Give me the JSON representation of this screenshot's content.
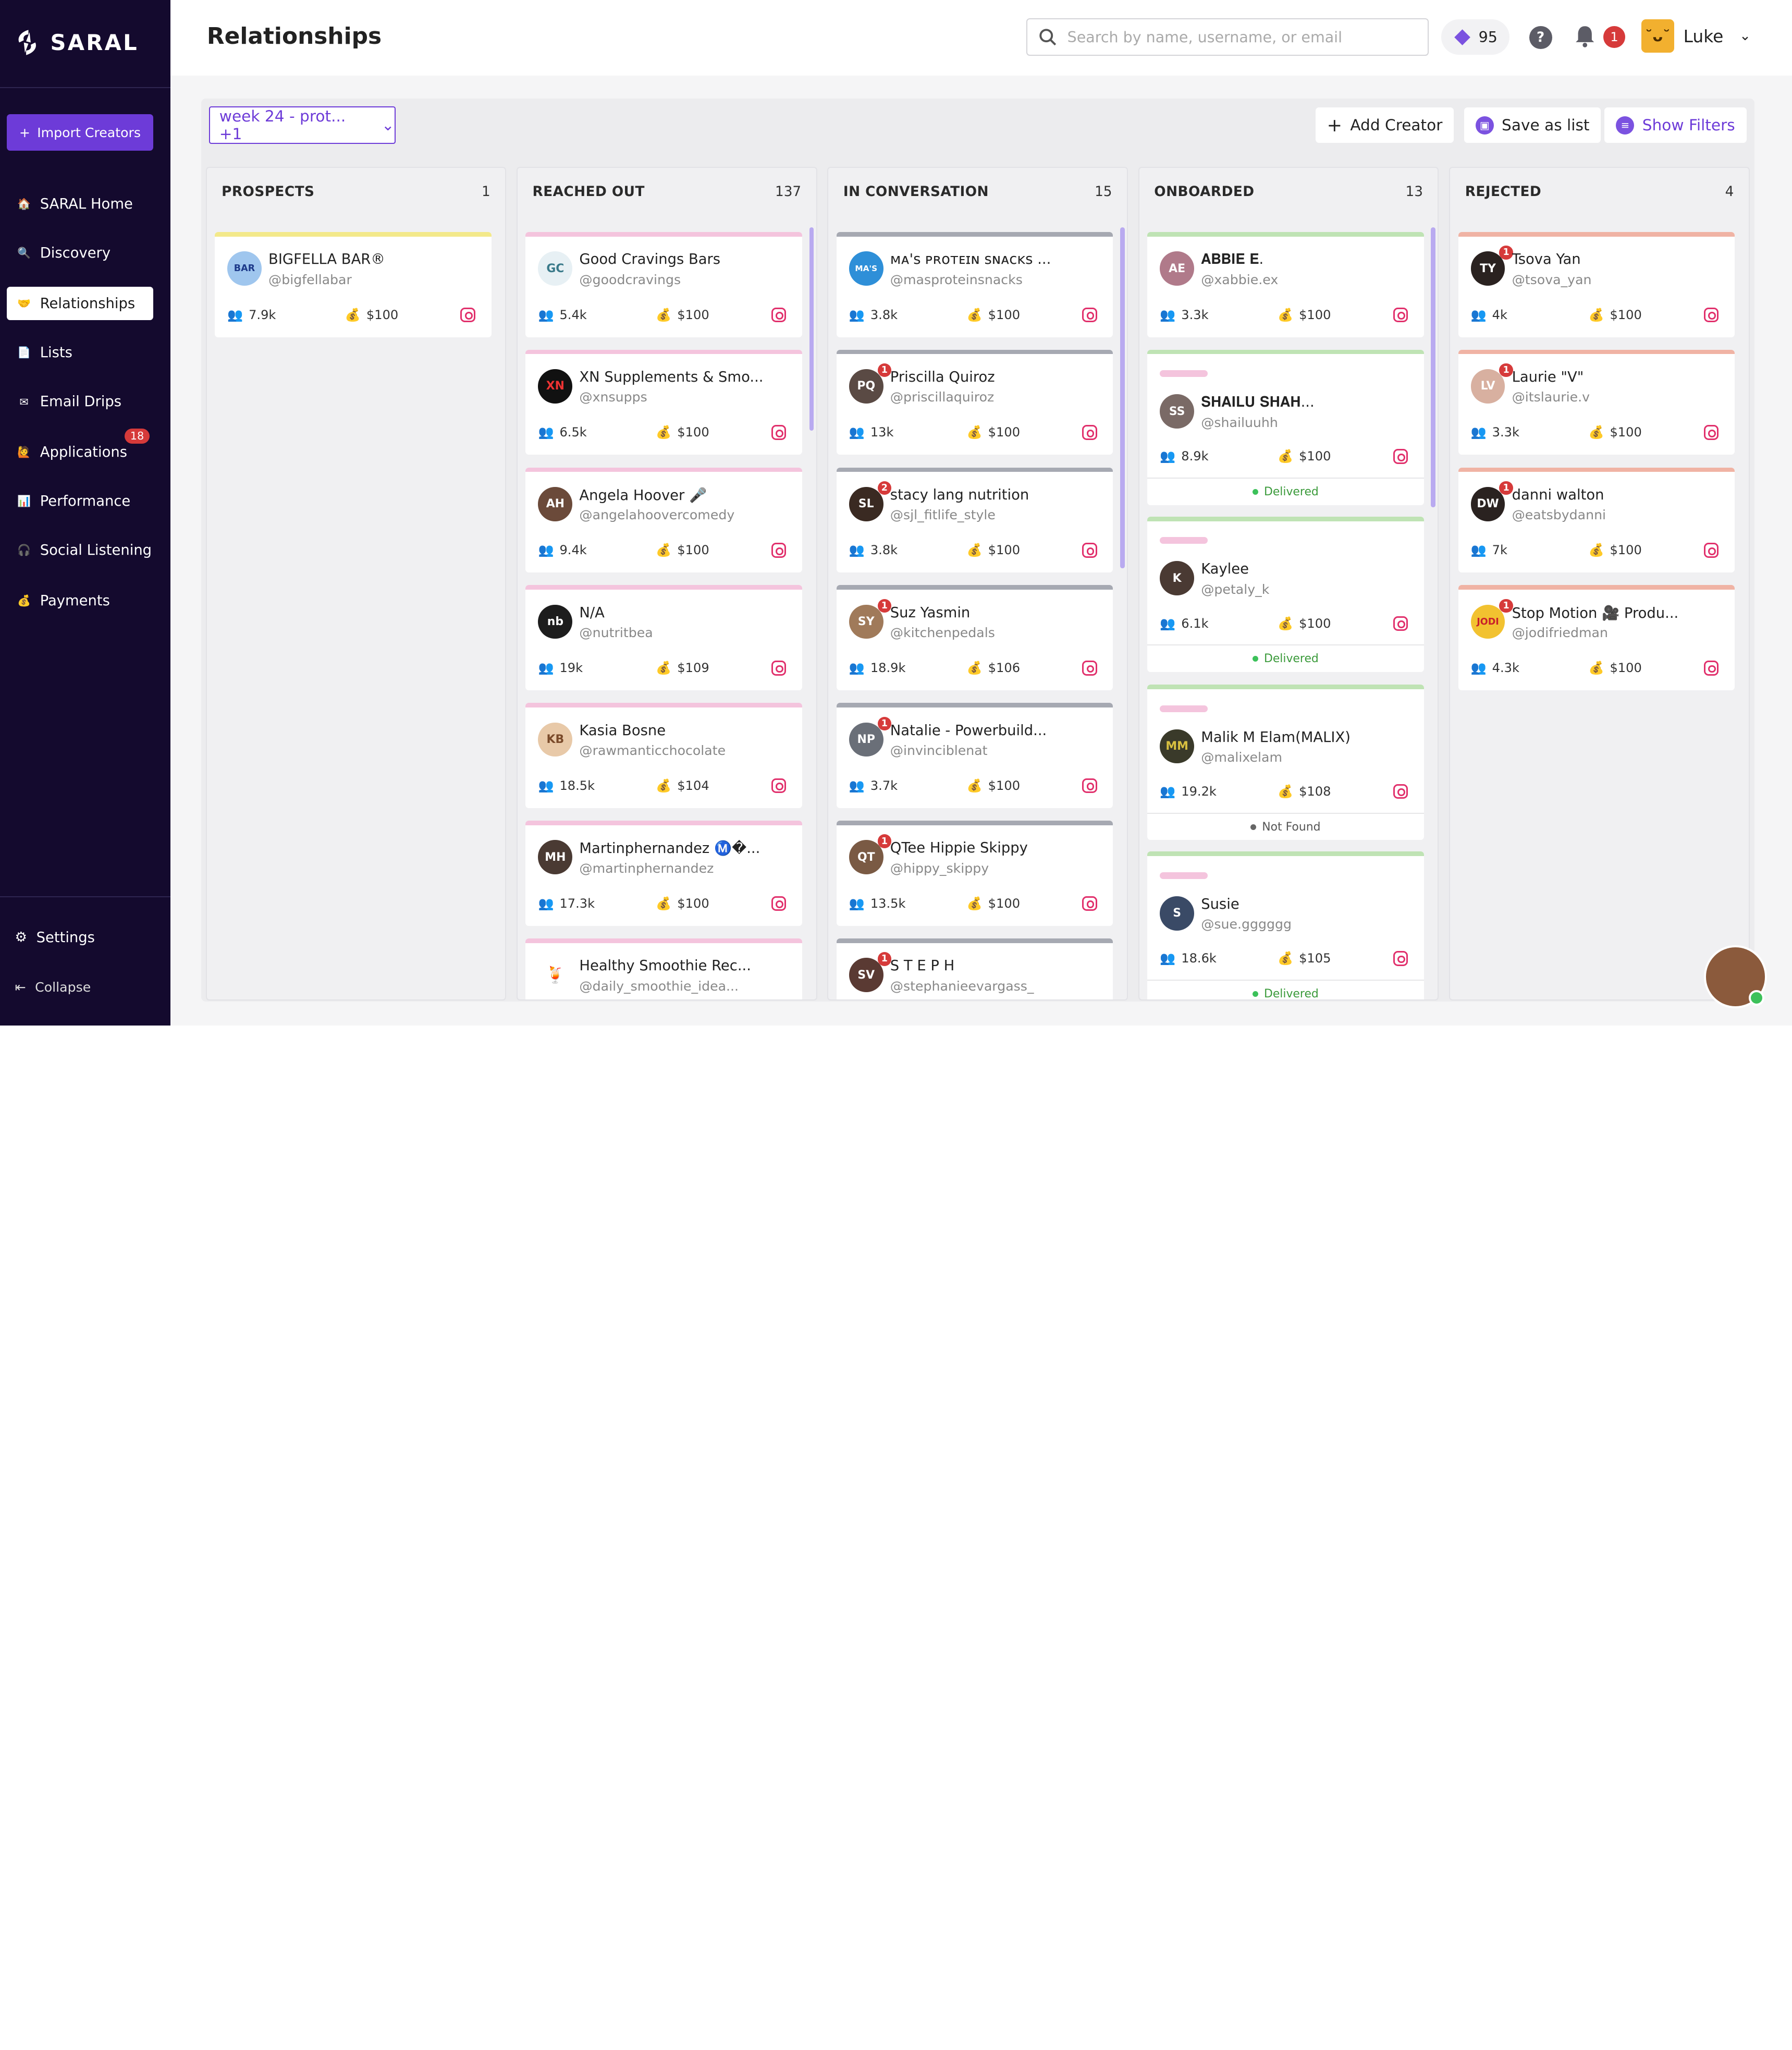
{
  "brand": {
    "name": "SARAL"
  },
  "sidebar": {
    "import_label": "Import Creators",
    "items": [
      {
        "label": "SARAL Home",
        "icon": "home-icon"
      },
      {
        "label": "Discovery",
        "icon": "search-icon"
      },
      {
        "label": "Relationships",
        "icon": "handshake-icon"
      },
      {
        "label": "Lists",
        "icon": "document-icon"
      },
      {
        "label": "Email Drips",
        "icon": "mail-icon"
      },
      {
        "label": "Applications",
        "icon": "applications-icon",
        "badge": "18"
      },
      {
        "label": "Performance",
        "icon": "chart-icon"
      },
      {
        "label": "Social Listening",
        "icon": "listening-icon"
      },
      {
        "label": "Payments",
        "icon": "money-bag-icon"
      }
    ],
    "settings_label": "Settings",
    "collapse_label": "Collapse"
  },
  "header": {
    "title": "Relationships",
    "search_placeholder": "Search by name, username, or email",
    "credits": "95",
    "notifications": "1",
    "user_name": "Luke"
  },
  "toolbar": {
    "week_filter": "week 24 - prot...  +1",
    "add_creator": "Add Creator",
    "save_list": "Save as list",
    "show_filters": "Show Filters"
  },
  "columns": [
    {
      "title": "PROSPECTS",
      "count": "1",
      "cards": [
        {
          "name": "BIGFELLA BAR®",
          "handle": "@bigfellabar",
          "followers": "7.9k",
          "price": "$100"
        }
      ]
    },
    {
      "title": "REACHED OUT",
      "count": "137",
      "cards": [
        {
          "name": "Good Cravings Bars",
          "handle": "@goodcravings",
          "followers": "5.4k",
          "price": "$100"
        },
        {
          "name": "XN Supplements & Smo...",
          "handle": "@xnsupps",
          "followers": "6.5k",
          "price": "$100"
        },
        {
          "name": "Angela Hoover 🎤",
          "handle": "@angelahoovercomedy",
          "followers": "9.4k",
          "price": "$100"
        },
        {
          "name": "N/A",
          "handle": "@nutritbea",
          "followers": "19k",
          "price": "$109"
        },
        {
          "name": "Kasia Bosne",
          "handle": "@rawmanticchocolate",
          "followers": "18.5k",
          "price": "$104"
        },
        {
          "name": "Martinphernandez Ⓜ️�...",
          "handle": "@martinphernandez",
          "followers": "17.3k",
          "price": "$100"
        },
        {
          "name": "Healthy Smoothie Rec...",
          "handle": "@daily_smoothie_idea...",
          "followers": "",
          "price": ""
        }
      ]
    },
    {
      "title": "IN CONVERSATION",
      "count": "15",
      "cards": [
        {
          "name": "ᴍᴀ'ꜱ ᴘʀᴏᴛᴇɪɴ ꜱɴᴀᴄᴋꜱ ...",
          "handle": "@masproteinsnacks",
          "followers": "3.8k",
          "price": "$100",
          "badge": ""
        },
        {
          "name": "Priscilla Quiroz",
          "handle": "@priscillaquiroz",
          "followers": "13k",
          "price": "$100",
          "badge": "1"
        },
        {
          "name": "stacy lang nutrition",
          "handle": "@sjl_fitlife_style",
          "followers": "3.8k",
          "price": "$100",
          "badge": "2"
        },
        {
          "name": "Suz Yasmin",
          "handle": "@kitchenpedals",
          "followers": "18.9k",
          "price": "$106",
          "badge": "1"
        },
        {
          "name": "Natalie - Powerbuild...",
          "handle": "@invinciblenat",
          "followers": "3.7k",
          "price": "$100",
          "badge": "1"
        },
        {
          "name": "QTee Hippie Skippy",
          "handle": "@hippy_skippy",
          "followers": "13.5k",
          "price": "$100",
          "badge": "1"
        },
        {
          "name": "S T E P H",
          "handle": "@stephanieevargass_",
          "followers": "",
          "price": "",
          "badge": "1"
        }
      ]
    },
    {
      "title": "ONBOARDED",
      "count": "13",
      "cards": [
        {
          "name": "𝐀𝐁𝐁𝐈𝐄 𝐄.",
          "handle": "@xabbie.ex",
          "followers": "3.3k",
          "price": "$100",
          "status": ""
        },
        {
          "name": "𝐒𝐇𝐀𝐈𝐋𝐔 𝐒𝐇𝐀𝐇...",
          "handle": "@shailuuhh",
          "followers": "8.9k",
          "price": "$100",
          "status": "Delivered"
        },
        {
          "name": "Kaylee",
          "handle": "@petaly_k",
          "followers": "6.1k",
          "price": "$100",
          "status": "Delivered"
        },
        {
          "name": "Malik M Elam(MALIX)",
          "handle": "@malixelam",
          "followers": "19.2k",
          "price": "$108",
          "status": "Not Found"
        },
        {
          "name": "Susie",
          "handle": "@sue.gggggg",
          "followers": "18.6k",
          "price": "$105",
          "status": "Delivered"
        }
      ]
    },
    {
      "title": "REJECTED",
      "count": "4",
      "cards": [
        {
          "name": "Tsova Yan",
          "handle": "@tsova_yan",
          "followers": "4k",
          "price": "$100",
          "badge": "1"
        },
        {
          "name": "Laurie \"V\"",
          "handle": "@itslaurie.v",
          "followers": "3.3k",
          "price": "$100",
          "badge": "1"
        },
        {
          "name": "danni walton",
          "handle": "@eatsbydanni",
          "followers": "7k",
          "price": "$100",
          "badge": "1"
        },
        {
          "name": "Stop Motion 🎥 Produ...",
          "handle": "@jodifriedman",
          "followers": "4.3k",
          "price": "$100",
          "badge": "1"
        }
      ]
    }
  ],
  "colors": {
    "sidebar_bg": "#140a2e",
    "accent": "#6d3bd8",
    "prospect_bar": "#f3e98a",
    "reached_bar": "#f4c4dd",
    "conversation_bar": "#a6a9b2",
    "onboarded_bar": "#bfe3b4",
    "rejected_bar": "#f0b3a4",
    "badge_red": "#d63a3a"
  }
}
